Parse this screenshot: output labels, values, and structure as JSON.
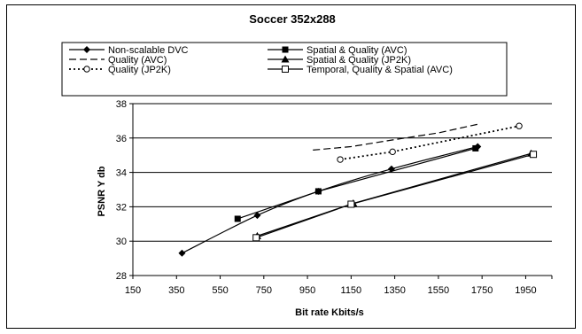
{
  "chart_data": {
    "type": "line",
    "title": "Soccer 352x288",
    "xlabel": "Bit rate Kbits/s",
    "ylabel": "PSNR Y db",
    "xlim": [
      150,
      2070
    ],
    "ylim": [
      28,
      38
    ],
    "xticks": [
      150,
      350,
      550,
      750,
      950,
      1150,
      1350,
      1550,
      1750,
      1950
    ],
    "yticks": [
      28,
      30,
      32,
      34,
      36,
      38
    ],
    "grid": "horizontal",
    "legend_placement": "top",
    "series": [
      {
        "name": "Non-scalable DVC",
        "marker": "diamond",
        "line": "solid",
        "smooth": true,
        "x": [
          375,
          720,
          1000,
          1335,
          1730
        ],
        "y": [
          29.3,
          31.5,
          32.9,
          34.2,
          35.5
        ]
      },
      {
        "name": "Spatial & Quality (AVC)",
        "marker": "square",
        "line": "solid",
        "smooth": false,
        "x": [
          630,
          1000,
          1720
        ],
        "y": [
          31.3,
          32.9,
          35.4
        ]
      },
      {
        "name": "Quality (AVC)",
        "marker": "none",
        "line": "dashed",
        "smooth": false,
        "x": [
          975,
          1150,
          1345,
          1550,
          1730
        ],
        "y": [
          35.3,
          35.5,
          35.9,
          36.3,
          36.8
        ]
      },
      {
        "name": "Spatial & Quality (JP2K)",
        "marker": "triangle",
        "line": "solid",
        "smooth": false,
        "x": [
          720,
          1160,
          1975
        ],
        "y": [
          30.3,
          32.2,
          35.1
        ]
      },
      {
        "name": "Quality (JP2K)",
        "marker": "circle",
        "line": "dotted",
        "smooth": false,
        "x": [
          1100,
          1340,
          1920
        ],
        "y": [
          34.75,
          35.2,
          36.7
        ]
      },
      {
        "name": "Temporal, Quality & Spatial (AVC)",
        "marker": "square-open",
        "line": "solid",
        "smooth": false,
        "x": [
          715,
          1150,
          1985
        ],
        "y": [
          30.2,
          32.15,
          35.05
        ]
      }
    ]
  }
}
